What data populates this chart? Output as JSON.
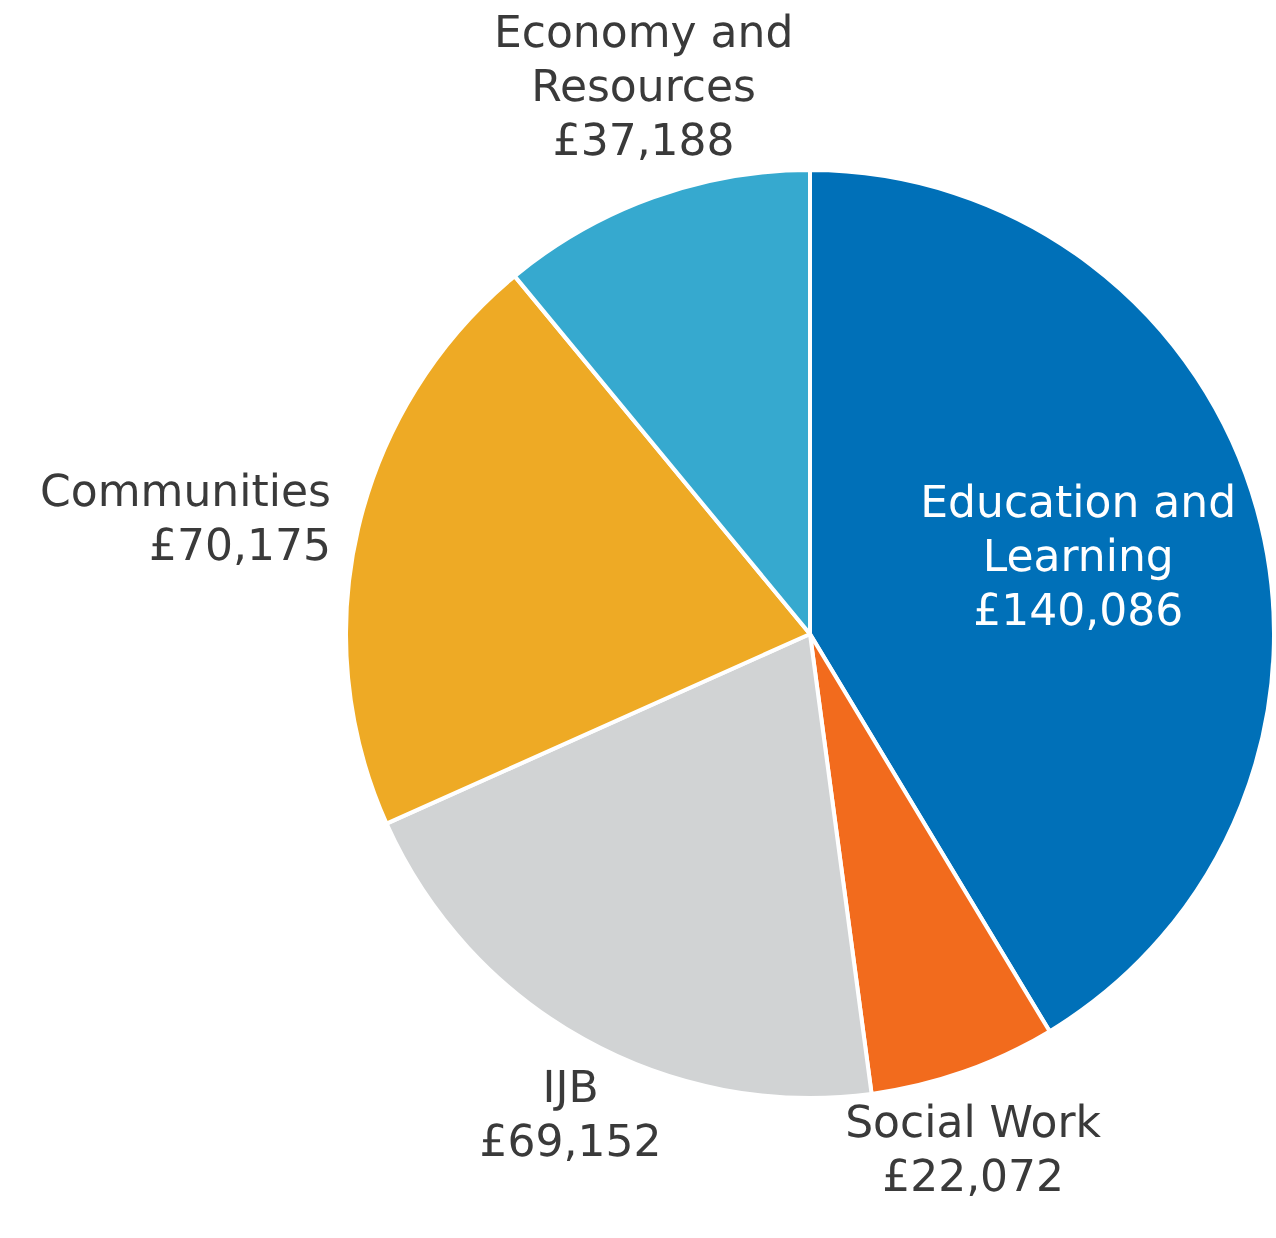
{
  "chart_data": {
    "type": "pie",
    "categories": [
      "Education and Learning",
      "Social Work",
      "IJB",
      "Communities",
      "Economy and Resources"
    ],
    "values": [
      140086,
      22072,
      69152,
      70175,
      37188
    ],
    "value_labels": [
      "£140,086",
      "£22,072",
      "£69,152",
      "£70,175",
      "£37,188"
    ],
    "colors": [
      "#0070b8",
      "#f26b1d",
      "#d1d3d4",
      "#eeaa25",
      "#36a9cf"
    ],
    "legend": false
  }
}
